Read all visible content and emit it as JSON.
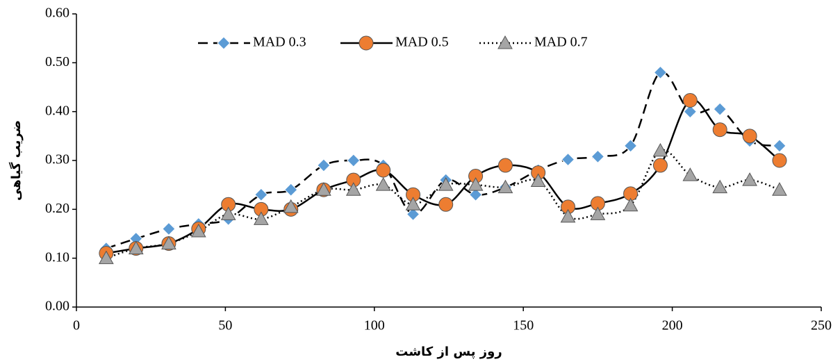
{
  "chart_data": {
    "type": "line",
    "x_label": "روز پس از کاشت",
    "y_label": "ضریب گیاهی",
    "x": [
      10,
      20,
      31,
      41,
      51,
      62,
      72,
      83,
      93,
      103,
      113,
      124,
      134,
      144,
      155,
      165,
      175,
      186,
      196,
      206,
      216,
      226,
      236
    ],
    "series": [
      {
        "name": "MAD 0.3",
        "color": "#5b9bd5",
        "marker": "diamond",
        "dash": "dashed",
        "values": [
          0.12,
          0.14,
          0.16,
          0.17,
          0.18,
          0.23,
          0.24,
          0.29,
          0.3,
          0.29,
          0.19,
          0.26,
          0.23,
          0.245,
          0.28,
          0.302,
          0.308,
          0.33,
          0.48,
          0.4,
          0.405,
          0.34,
          0.33
        ]
      },
      {
        "name": "MAD 0.5",
        "color": "#ed7d31",
        "marker": "circle",
        "dash": "solid",
        "values": [
          0.11,
          0.12,
          0.13,
          0.16,
          0.21,
          0.2,
          0.2,
          0.24,
          0.26,
          0.28,
          0.23,
          0.21,
          0.268,
          0.29,
          0.275,
          0.205,
          0.212,
          0.232,
          0.29,
          0.423,
          0.363,
          0.35,
          0.3
        ]
      },
      {
        "name": "MAD 0.7",
        "color": "#a5a5a5",
        "marker": "triangle",
        "dash": "dotted",
        "values": [
          0.1,
          0.12,
          0.13,
          0.155,
          0.19,
          0.18,
          0.205,
          0.24,
          0.24,
          0.25,
          0.21,
          0.25,
          0.25,
          0.245,
          0.258,
          0.185,
          0.19,
          0.208,
          0.32,
          0.27,
          0.245,
          0.26,
          0.24
        ]
      }
    ],
    "smooth": true,
    "xlim": [
      0,
      250
    ],
    "xticks": [
      0,
      50,
      100,
      150,
      200,
      250
    ],
    "ylim": [
      0,
      0.6
    ],
    "yticks": [
      {
        "value": 0,
        "label": "0.00"
      },
      {
        "value": 0.1,
        "label": "0.10"
      },
      {
        "value": 0.2,
        "label": "0.20"
      },
      {
        "value": 0.3,
        "label": "0.30"
      },
      {
        "value": 0.4,
        "label": "0.40"
      },
      {
        "value": 0.5,
        "label": "0.50"
      },
      {
        "value": 0.6,
        "label": "0.60"
      }
    ],
    "legend": "top"
  }
}
